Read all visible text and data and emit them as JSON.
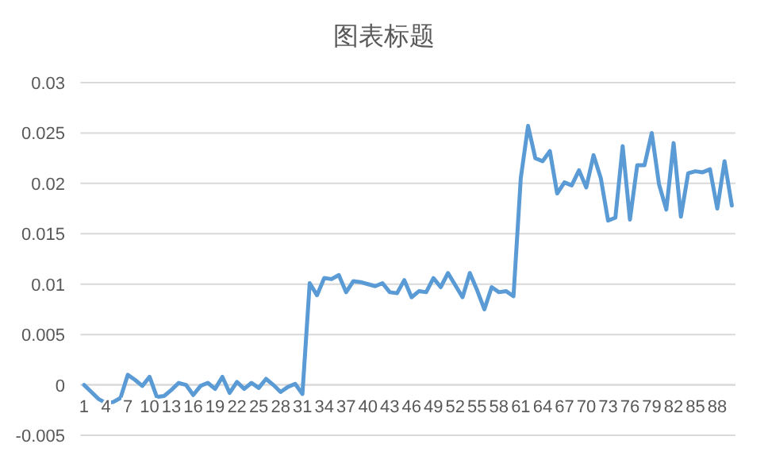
{
  "chart_data": {
    "type": "line",
    "title": "图表标题",
    "categories": [
      "1",
      null,
      null,
      "4",
      null,
      null,
      "7",
      null,
      null,
      "10",
      null,
      null,
      "13",
      null,
      null,
      "16",
      null,
      null,
      "19",
      null,
      null,
      "22",
      null,
      null,
      "25",
      null,
      null,
      "28",
      null,
      null,
      "31",
      null,
      null,
      "34",
      null,
      null,
      "37",
      null,
      null,
      "40",
      null,
      null,
      "43",
      null,
      null,
      "46",
      null,
      null,
      "49",
      null,
      null,
      "52",
      null,
      null,
      "55",
      null,
      null,
      "58",
      null,
      null,
      "61",
      null,
      null,
      "64",
      null,
      null,
      "67",
      null,
      null,
      "70",
      null,
      null,
      "73",
      null,
      null,
      "76",
      null,
      null,
      "79",
      null,
      null,
      "82",
      null,
      null,
      "85",
      null,
      null,
      "88",
      null,
      null
    ],
    "series": [
      {
        "color": "#5b9bd5",
        "values": [
          0,
          -0.0007,
          -0.0014,
          -0.0018,
          -0.0017,
          -0.0013,
          0.001,
          0.0005,
          -0.0001,
          0.0008,
          -0.0012,
          -0.0011,
          -0.0005,
          0.0002,
          0,
          -0.001,
          -0.0001,
          0.0002,
          -0.0004,
          0.0008,
          -0.0008,
          0.0003,
          -0.0004,
          0.0002,
          -0.0003,
          0.0006,
          0,
          -0.0007,
          -0.0002,
          0.0001,
          -0.0009,
          0.0101,
          0.0089,
          0.0106,
          0.0105,
          0.0109,
          0.0092,
          0.0103,
          0.0102,
          0.01,
          0.0098,
          0.0101,
          0.0092,
          0.0091,
          0.0104,
          0.0087,
          0.0093,
          0.0092,
          0.0106,
          0.0097,
          0.0111,
          0.0099,
          0.0087,
          0.0111,
          0.0094,
          0.0075,
          0.0097,
          0.0092,
          0.0093,
          0.0088,
          0.0205,
          0.0257,
          0.0225,
          0.0222,
          0.0232,
          0.019,
          0.0201,
          0.0198,
          0.0213,
          0.0196,
          0.0228,
          0.0205,
          0.0163,
          0.0166,
          0.0237,
          0.0164,
          0.0218,
          0.0218,
          0.025,
          0.0199,
          0.0174,
          0.024,
          0.0167,
          0.021,
          0.0212,
          0.0211,
          0.0214,
          0.0175,
          0.0222,
          0.0178
        ]
      }
    ],
    "ylim": [
      -0.005,
      0.03
    ],
    "yticks": [
      -0.005,
      0,
      0.005,
      0.01,
      0.015,
      0.02,
      0.025,
      0.03
    ],
    "grid": "y",
    "marker": "none",
    "line_style": "solid"
  }
}
